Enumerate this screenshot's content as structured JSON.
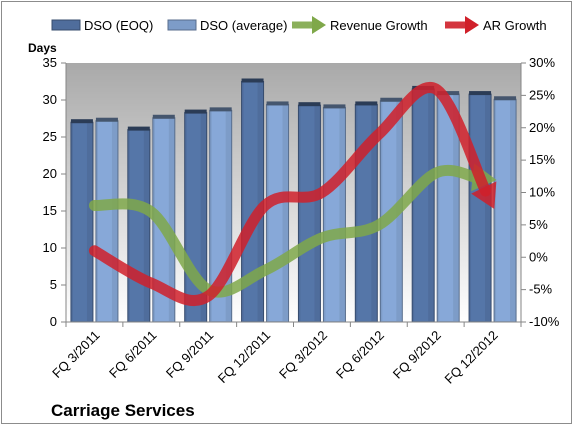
{
  "chart_data": {
    "type": "bar",
    "title": "Carriage Services",
    "ylabel": "Days",
    "categories": [
      "FQ 3/2011",
      "FQ 6/2011",
      "FQ 9/2011",
      "FQ 12/2011",
      "FQ 3/2012",
      "FQ 6/2012",
      "FQ 9/2012",
      "FQ 12/2012"
    ],
    "ylim": [
      0,
      35
    ],
    "yticks": [
      "0",
      "5",
      "10",
      "15",
      "20",
      "25",
      "30",
      "35"
    ],
    "y2lim": [
      -10,
      30
    ],
    "y2ticks": [
      "-10%",
      "-5%",
      "0%",
      "5%",
      "10%",
      "15%",
      "20%",
      "25%",
      "30%"
    ],
    "series": [
      {
        "name": "DSO (EOQ)",
        "kind": "bar",
        "color": "#4f6d9c",
        "values": [
          27.0,
          26.0,
          28.3,
          32.5,
          29.3,
          29.4,
          31.5,
          30.8
        ]
      },
      {
        "name": "DSO (average)",
        "kind": "bar",
        "color": "#7d9cc8",
        "values": [
          27.2,
          27.6,
          28.6,
          29.4,
          29.0,
          29.9,
          30.8,
          30.1
        ]
      },
      {
        "name": "Revenue Growth",
        "kind": "arrow-line",
        "axis": "right",
        "color": "#7fa84a",
        "values": [
          8,
          7,
          -5,
          -2,
          3,
          5,
          13,
          12
        ]
      },
      {
        "name": "AR Growth",
        "kind": "arrow-line",
        "axis": "right",
        "color": "#d0202a",
        "values": [
          1,
          -4,
          -6,
          8,
          10,
          19,
          26,
          8
        ]
      }
    ],
    "legend": "top",
    "grid": false
  }
}
